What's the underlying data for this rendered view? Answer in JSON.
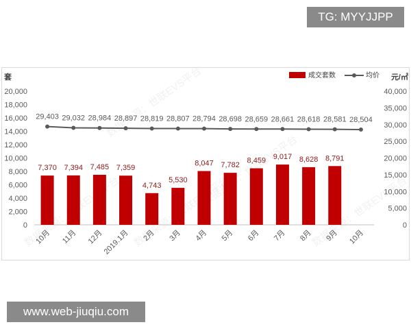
{
  "tg_label": "TG: MYYJJPP",
  "url_label": "www.web-jiuqiu.com",
  "watermark": "数据来源：世联EVS平台",
  "colors": {
    "bar": "#c00000",
    "line": "#595959",
    "bar_label": "#8b1a1a",
    "axis_text": "#595959",
    "grid": "#d9d9d9"
  },
  "chart_data": {
    "type": "bar",
    "categories": [
      "10月",
      "11月",
      "12月",
      "2019.1月",
      "2月",
      "3月",
      "4月",
      "5月",
      "6月",
      "7月",
      "8月",
      "9月",
      "10月"
    ],
    "series": [
      {
        "name": "成交套数",
        "type": "bar",
        "axis": "left",
        "values": [
          7370,
          7394,
          7485,
          7359,
          4743,
          5530,
          8047,
          7782,
          8459,
          9017,
          8628,
          8791,
          null
        ],
        "labels": [
          "7,370",
          "7,394",
          "7,485",
          "7,359",
          "4,743",
          "5,530",
          "8,047",
          "7,782",
          "8,459",
          "9,017",
          "8,628",
          "8,791",
          ""
        ]
      },
      {
        "name": "均价",
        "type": "line",
        "axis": "right",
        "values": [
          29403,
          29032,
          28984,
          28897,
          28819,
          28807,
          28794,
          28698,
          28659,
          28661,
          28618,
          28581,
          28504
        ],
        "labels": [
          "29,403",
          "29,032",
          "28,984",
          "28,897",
          "28,819",
          "28,807",
          "28,794",
          "28,698",
          "28,659",
          "28,661",
          "28,618",
          "28,581",
          "28,504"
        ]
      }
    ],
    "left_axis": {
      "unit": "套",
      "ylim": [
        0,
        20000
      ],
      "ticks": [
        "0",
        "2,000",
        "4,000",
        "6,000",
        "8,000",
        "10,000",
        "12,000",
        "14,000",
        "16,000",
        "18,000",
        "20,000"
      ]
    },
    "right_axis": {
      "unit": "元/㎡",
      "ylim": [
        0,
        40000
      ],
      "ticks": [
        "0",
        "5,000",
        "10,000",
        "15,000",
        "20,000",
        "25,000",
        "30,000",
        "35,000",
        "40,000"
      ]
    },
    "grid": false,
    "legend_position": "top-right"
  }
}
